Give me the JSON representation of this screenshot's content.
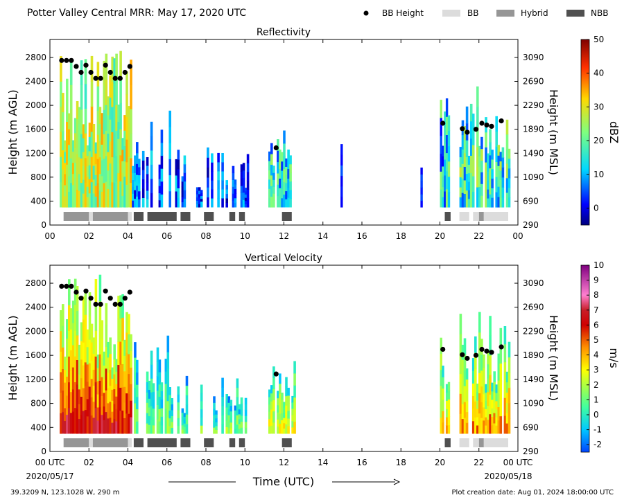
{
  "header": {
    "title": "Potter Valley Central MRR:  May 17, 2020 UTC"
  },
  "legend": {
    "items": [
      {
        "label": "BB Height",
        "kind": "dot",
        "color": "#000000"
      },
      {
        "label": "BB",
        "kind": "bar",
        "color": "#dcdcdc"
      },
      {
        "label": "Hybrid",
        "kind": "bar",
        "color": "#969696"
      },
      {
        "label": "NBB",
        "kind": "bar",
        "color": "#505050"
      }
    ]
  },
  "footer": {
    "location": "39.3209 N, 123.1028 W, 290 m",
    "created": "Plot creation date: Aug 01, 2024 18:00:00 UTC",
    "start_date": "2020/05/17",
    "end_date": "2020/05/18"
  },
  "chart_data": [
    {
      "type": "heatmap",
      "title": "Reflectivity",
      "xlabel": "",
      "ylabel": "Height (m AGL)",
      "y2label": "Height (m MSL)",
      "xlim": [
        0,
        24
      ],
      "ylim": [
        0,
        3100
      ],
      "x_ticks": [
        "00",
        "02",
        "04",
        "06",
        "08",
        "10",
        "12",
        "14",
        "16",
        "18",
        "20",
        "22",
        "00"
      ],
      "y_ticks": [
        0,
        400,
        800,
        1200,
        1600,
        2000,
        2400,
        2800
      ],
      "y2_ticks": [
        290,
        690,
        1090,
        1490,
        1890,
        2290,
        2690,
        3090
      ],
      "colorbar": {
        "label": "dBZ",
        "range": [
          -5,
          50
        ],
        "ticks": [
          0,
          10,
          20,
          30,
          40,
          50
        ],
        "scheme": "jet"
      },
      "bb_height": [
        {
          "x": 0.6,
          "y": 2750
        },
        {
          "x": 0.85,
          "y": 2750
        },
        {
          "x": 1.1,
          "y": 2750
        },
        {
          "x": 1.35,
          "y": 2650
        },
        {
          "x": 1.6,
          "y": 2550
        },
        {
          "x": 1.85,
          "y": 2670
        },
        {
          "x": 2.1,
          "y": 2550
        },
        {
          "x": 2.35,
          "y": 2450
        },
        {
          "x": 2.6,
          "y": 2450
        },
        {
          "x": 2.85,
          "y": 2670
        },
        {
          "x": 3.1,
          "y": 2550
        },
        {
          "x": 3.35,
          "y": 2450
        },
        {
          "x": 3.6,
          "y": 2450
        },
        {
          "x": 3.85,
          "y": 2550
        },
        {
          "x": 4.1,
          "y": 2650
        },
        {
          "x": 11.6,
          "y": 1290
        },
        {
          "x": 20.15,
          "y": 1700
        },
        {
          "x": 21.15,
          "y": 1610
        },
        {
          "x": 21.4,
          "y": 1550
        },
        {
          "x": 21.85,
          "y": 1600
        },
        {
          "x": 22.15,
          "y": 1700
        },
        {
          "x": 22.4,
          "y": 1670
        },
        {
          "x": 22.65,
          "y": 1650
        },
        {
          "x": 23.15,
          "y": 1740
        }
      ],
      "bb_type_segments": [
        {
          "start": 0.7,
          "end": 2.0,
          "type": "Hybrid"
        },
        {
          "start": 2.0,
          "end": 2.2,
          "type": "BB"
        },
        {
          "start": 2.2,
          "end": 4.0,
          "type": "Hybrid"
        },
        {
          "start": 4.0,
          "end": 4.2,
          "type": "BB"
        },
        {
          "start": 4.3,
          "end": 4.8,
          "type": "NBB"
        },
        {
          "start": 5.0,
          "end": 6.5,
          "type": "NBB"
        },
        {
          "start": 6.7,
          "end": 7.2,
          "type": "NBB"
        },
        {
          "start": 7.9,
          "end": 8.4,
          "type": "NBB"
        },
        {
          "start": 9.2,
          "end": 9.5,
          "type": "NBB"
        },
        {
          "start": 9.7,
          "end": 10.0,
          "type": "NBB"
        },
        {
          "start": 11.9,
          "end": 12.4,
          "type": "NBB"
        },
        {
          "start": 20.25,
          "end": 20.55,
          "type": "NBB"
        },
        {
          "start": 21.0,
          "end": 21.5,
          "type": "BB"
        },
        {
          "start": 21.7,
          "end": 22.0,
          "type": "BB"
        },
        {
          "start": 22.0,
          "end": 22.25,
          "type": "Hybrid"
        },
        {
          "start": 22.25,
          "end": 23.5,
          "type": "BB"
        }
      ]
    },
    {
      "type": "heatmap",
      "title": "Vertical Velocity",
      "xlabel": "Time (UTC)",
      "ylabel": "Height (m AGL)",
      "y2label": "Height (m MSL)",
      "xlim": [
        0,
        24
      ],
      "ylim": [
        0,
        3100
      ],
      "x_ticks": [
        "00 UTC",
        "02",
        "04",
        "06",
        "08",
        "10",
        "12",
        "14",
        "16",
        "18",
        "20",
        "22",
        "00 UTC"
      ],
      "y_ticks": [
        0,
        400,
        800,
        1200,
        1600,
        2000,
        2400,
        2800
      ],
      "y2_ticks": [
        290,
        690,
        1090,
        1490,
        1890,
        2290,
        2690,
        3090
      ],
      "colorbar": {
        "label": "m/s",
        "range": [
          -2.5,
          10
        ],
        "ticks": [
          -2,
          -1,
          0,
          1,
          2,
          3,
          4,
          5,
          6,
          7,
          8,
          9,
          10
        ],
        "scheme": "velocity"
      },
      "bb_height": [
        {
          "x": 0.6,
          "y": 2750
        },
        {
          "x": 0.85,
          "y": 2750
        },
        {
          "x": 1.1,
          "y": 2750
        },
        {
          "x": 1.35,
          "y": 2650
        },
        {
          "x": 1.6,
          "y": 2550
        },
        {
          "x": 1.85,
          "y": 2670
        },
        {
          "x": 2.1,
          "y": 2550
        },
        {
          "x": 2.35,
          "y": 2450
        },
        {
          "x": 2.6,
          "y": 2450
        },
        {
          "x": 2.85,
          "y": 2670
        },
        {
          "x": 3.1,
          "y": 2550
        },
        {
          "x": 3.35,
          "y": 2450
        },
        {
          "x": 3.6,
          "y": 2450
        },
        {
          "x": 3.85,
          "y": 2550
        },
        {
          "x": 4.1,
          "y": 2650
        },
        {
          "x": 11.6,
          "y": 1290
        },
        {
          "x": 20.15,
          "y": 1700
        },
        {
          "x": 21.15,
          "y": 1610
        },
        {
          "x": 21.4,
          "y": 1550
        },
        {
          "x": 21.85,
          "y": 1600
        },
        {
          "x": 22.15,
          "y": 1700
        },
        {
          "x": 22.4,
          "y": 1670
        },
        {
          "x": 22.65,
          "y": 1650
        },
        {
          "x": 23.15,
          "y": 1740
        }
      ],
      "bb_type_segments": [
        {
          "start": 0.7,
          "end": 2.0,
          "type": "Hybrid"
        },
        {
          "start": 2.0,
          "end": 2.2,
          "type": "BB"
        },
        {
          "start": 2.2,
          "end": 4.0,
          "type": "Hybrid"
        },
        {
          "start": 4.0,
          "end": 4.2,
          "type": "BB"
        },
        {
          "start": 4.3,
          "end": 4.8,
          "type": "NBB"
        },
        {
          "start": 5.0,
          "end": 6.5,
          "type": "NBB"
        },
        {
          "start": 6.7,
          "end": 7.2,
          "type": "NBB"
        },
        {
          "start": 7.9,
          "end": 8.4,
          "type": "NBB"
        },
        {
          "start": 9.2,
          "end": 9.5,
          "type": "NBB"
        },
        {
          "start": 9.7,
          "end": 10.0,
          "type": "NBB"
        },
        {
          "start": 11.9,
          "end": 12.4,
          "type": "NBB"
        },
        {
          "start": 20.25,
          "end": 20.55,
          "type": "NBB"
        },
        {
          "start": 21.0,
          "end": 21.5,
          "type": "BB"
        },
        {
          "start": 21.7,
          "end": 22.0,
          "type": "BB"
        },
        {
          "start": 22.0,
          "end": 22.25,
          "type": "Hybrid"
        },
        {
          "start": 22.25,
          "end": 23.5,
          "type": "BB"
        }
      ]
    }
  ]
}
